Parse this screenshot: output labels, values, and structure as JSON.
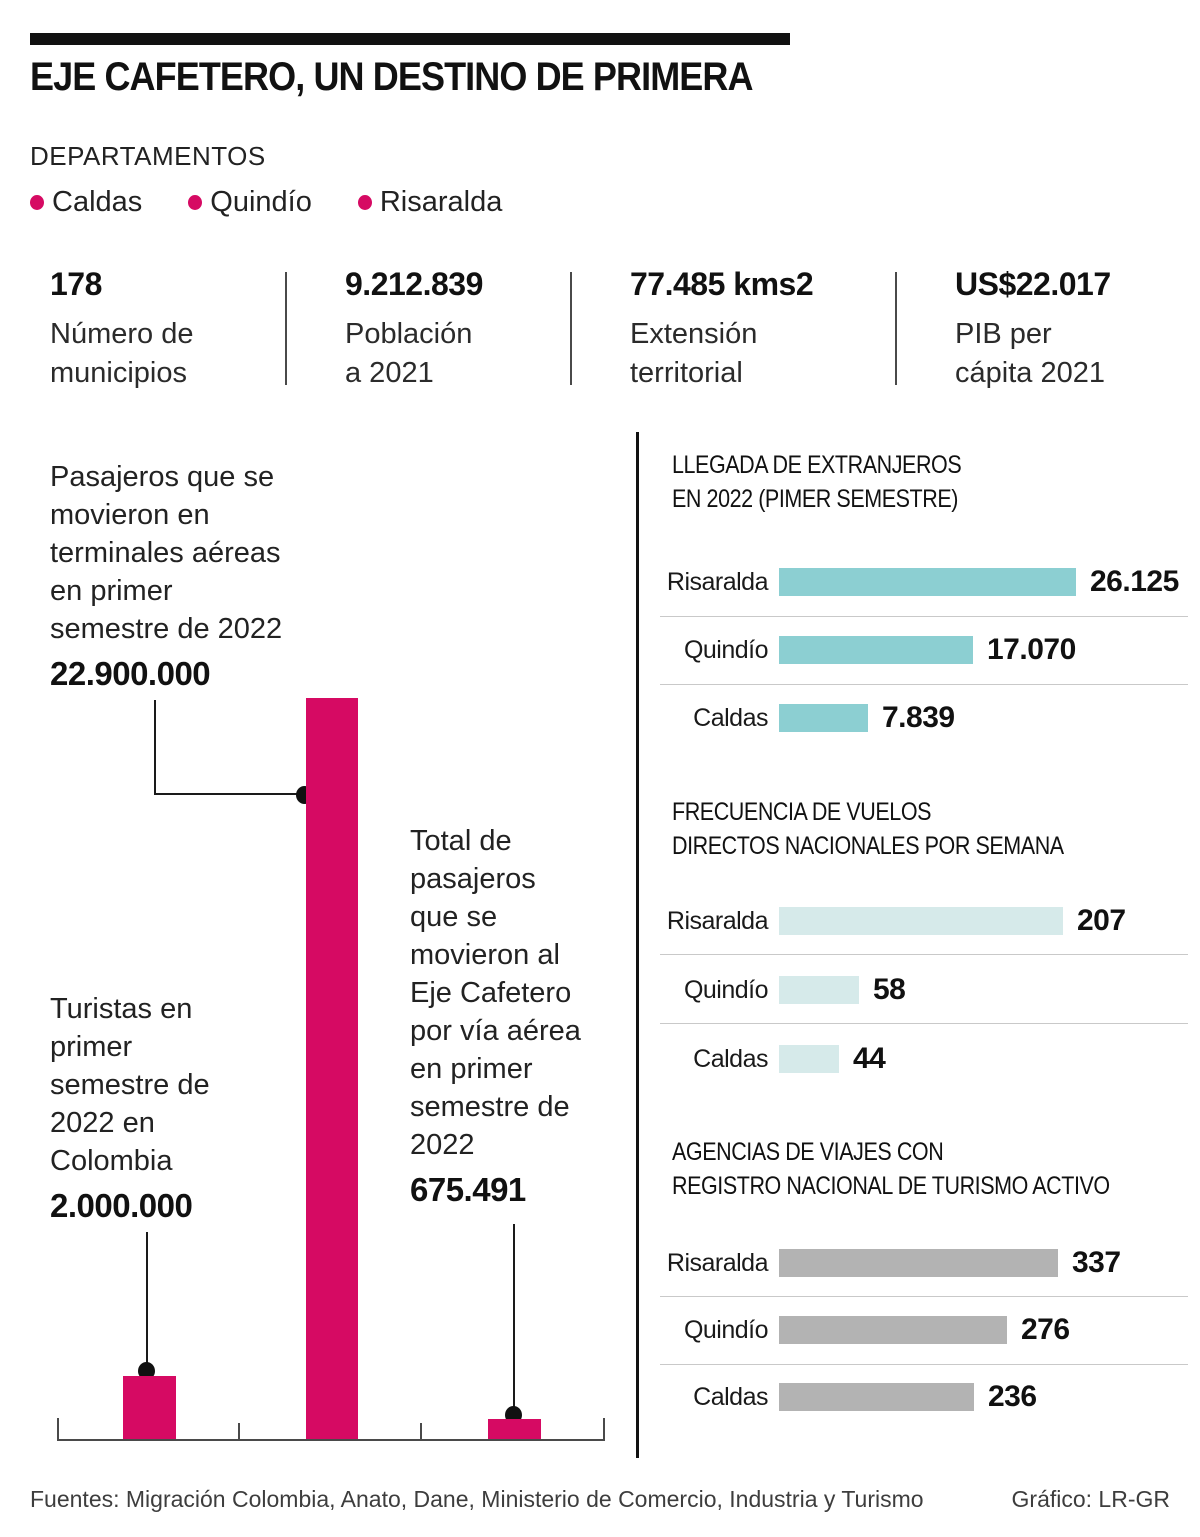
{
  "header": {
    "title": "EJE CAFETERO, UN DESTINO DE PRIMERA",
    "legend_title": "DEPARTAMENTOS",
    "legend": [
      {
        "label": "Caldas"
      },
      {
        "label": "Quindío"
      },
      {
        "label": "Risaralda"
      }
    ],
    "accent_color": "#d60a63"
  },
  "stats": [
    {
      "value": "178",
      "label_lines": [
        "Número de",
        "municipios"
      ]
    },
    {
      "value": "9.212.839",
      "label_lines": [
        "Población",
        "a 2021"
      ]
    },
    {
      "value": "77.485 kms2",
      "label_lines": [
        "Extensión",
        "territorial"
      ]
    },
    {
      "value": "US$22.017",
      "label_lines": [
        "PIB per",
        "cápita 2021"
      ]
    }
  ],
  "chart_data": [
    {
      "id": "pasajeros-aereos",
      "type": "bar",
      "orientation": "vertical",
      "color": "#d60a63",
      "ymax": 22900000,
      "bars": [
        {
          "annotation_lines": [
            "Turistas en",
            "primer",
            "semestre de",
            "2022 en",
            "Colombia"
          ],
          "value": 2000000,
          "value_display": "2.000.000"
        },
        {
          "annotation_lines": [
            "Pasajeros que se",
            "movieron en",
            "terminales aéreas",
            "en primer",
            "semestre de 2022"
          ],
          "value": 22900000,
          "value_display": "22.900.000"
        },
        {
          "annotation_lines": [
            "Total de",
            "pasajeros",
            "que se",
            "movieron al",
            "Eje Cafetero",
            "por vía aérea",
            "en primer",
            "semestre de",
            "2022"
          ],
          "value": 675491,
          "value_display": "675.491"
        }
      ]
    },
    {
      "id": "llegada-extranjeros",
      "type": "bar",
      "orientation": "horizontal",
      "title_lines": [
        "LLEGADA DE EXTRANJEROS",
        "EN 2022 (PIMER SEMESTRE)"
      ],
      "color": "#8ccfd2",
      "categories": [
        "Risaralda",
        "Quindío",
        "Caldas"
      ],
      "values": [
        26125,
        17070,
        7839
      ],
      "value_labels": [
        "26.125",
        "17.070",
        "7.839"
      ]
    },
    {
      "id": "frecuencia-vuelos",
      "type": "bar",
      "orientation": "horizontal",
      "title_lines": [
        "FRECUENCIA DE VUELOS",
        "DIRECTOS NACIONALES POR SEMANA"
      ],
      "color": "#d6eaea",
      "categories": [
        "Risaralda",
        "Quindío",
        "Caldas"
      ],
      "values": [
        207,
        58,
        44
      ],
      "value_labels": [
        "207",
        "58",
        "44"
      ]
    },
    {
      "id": "agencias-viajes",
      "type": "bar",
      "orientation": "horizontal",
      "title_lines": [
        "AGENCIAS DE VIAJES CON",
        "REGISTRO NACIONAL DE TURISMO ACTIVO"
      ],
      "color": "#b3b3b3",
      "categories": [
        "Risaralda",
        "Quindío",
        "Caldas"
      ],
      "values": [
        337,
        276,
        236
      ],
      "value_labels": [
        "337",
        "276",
        "236"
      ]
    }
  ],
  "footer": {
    "sources": "Fuentes: Migración Colombia, Anato, Dane, Ministerio de Comercio, Industria y Turismo",
    "credit": "Gráfico: LR-GR"
  }
}
